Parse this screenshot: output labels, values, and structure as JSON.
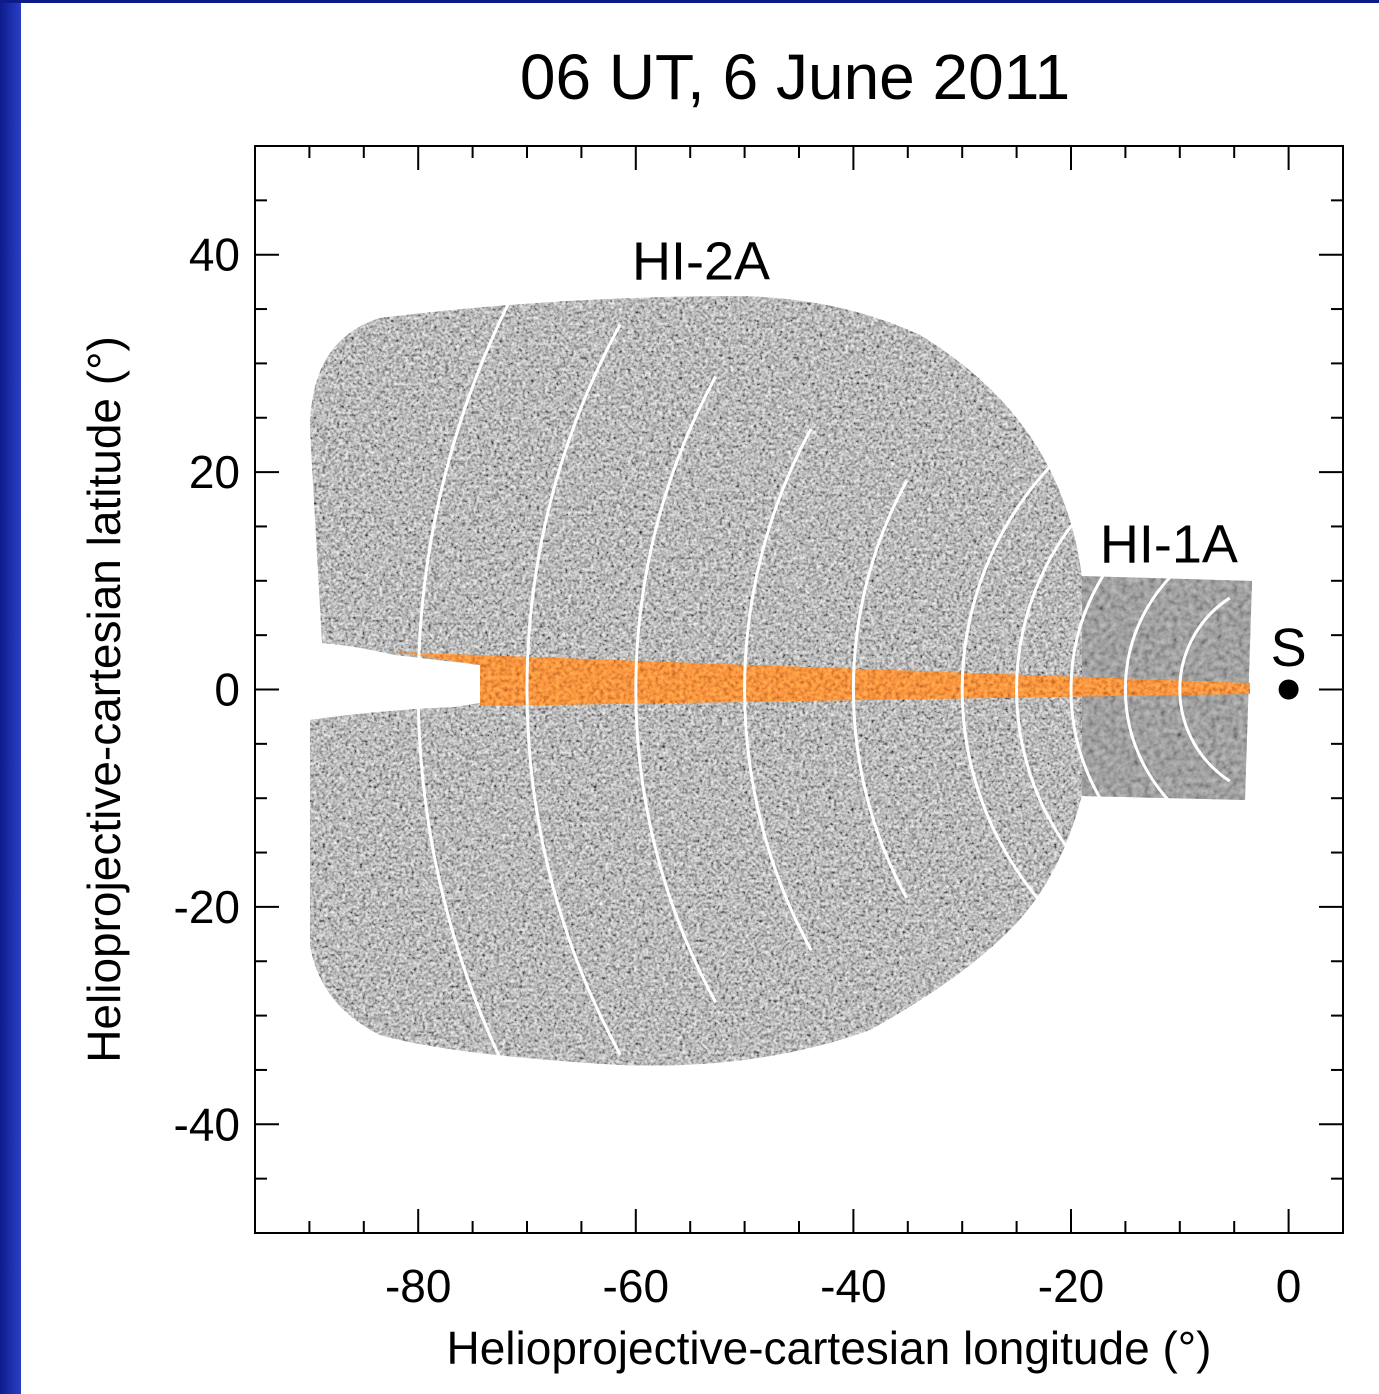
{
  "title": "06 UT, 6 June 2011",
  "chart_data": {
    "type": "scatter",
    "title": "06 UT, 6 June 2011",
    "xlabel": "Helioprojective-cartesian longitude (°)",
    "ylabel": "Helioprojective-cartesian latitude (°)",
    "xlim": [
      -95,
      5
    ],
    "ylim": [
      -50,
      50
    ],
    "xticks": [
      -80,
      -60,
      -40,
      -20,
      0
    ],
    "yticks": [
      -40,
      -20,
      0,
      20,
      40
    ],
    "xtick_labels": [
      "-80",
      "-60",
      "-40",
      "-20",
      "0"
    ],
    "ytick_labels": [
      "-40",
      "-20",
      "0",
      "20",
      "40"
    ],
    "grid": false,
    "annotations": [
      {
        "text": "HI-2A",
        "x": -54,
        "y": 39
      },
      {
        "text": "HI-1A",
        "x": -11,
        "y": 15
      },
      {
        "text": "S",
        "x": 0,
        "y": 4
      }
    ],
    "points": [
      {
        "name": "S",
        "x": 0,
        "y": 0
      }
    ],
    "elongation_arcs_deg": [
      10,
      15,
      20,
      25,
      30,
      40,
      50,
      60,
      70,
      80
    ],
    "colors": {
      "ecliptic_band": "#c9440a",
      "image_gray": "#8c8c8c",
      "frame": "#0d1b8a"
    }
  }
}
